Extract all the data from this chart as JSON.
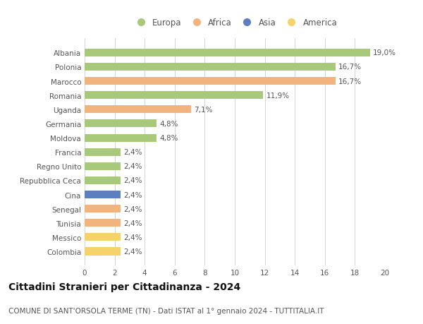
{
  "categories": [
    "Albania",
    "Polonia",
    "Marocco",
    "Romania",
    "Uganda",
    "Germania",
    "Moldova",
    "Francia",
    "Regno Unito",
    "Repubblica Ceca",
    "Cina",
    "Senegal",
    "Tunisia",
    "Messico",
    "Colombia"
  ],
  "values": [
    19.0,
    16.7,
    16.7,
    11.9,
    7.1,
    4.8,
    4.8,
    2.4,
    2.4,
    2.4,
    2.4,
    2.4,
    2.4,
    2.4,
    2.4
  ],
  "labels": [
    "19,0%",
    "16,7%",
    "16,7%",
    "11,9%",
    "7,1%",
    "4,8%",
    "4,8%",
    "2,4%",
    "2,4%",
    "2,4%",
    "2,4%",
    "2,4%",
    "2,4%",
    "2,4%",
    "2,4%"
  ],
  "continent": [
    "Europa",
    "Europa",
    "Africa",
    "Europa",
    "Africa",
    "Europa",
    "Europa",
    "Europa",
    "Europa",
    "Europa",
    "Asia",
    "Africa",
    "Africa",
    "America",
    "America"
  ],
  "colors": {
    "Europa": "#a8c97a",
    "Africa": "#f2b47e",
    "Asia": "#5b7fbf",
    "America": "#f5d26a"
  },
  "title1": "Cittadini Stranieri per Cittadinanza - 2024",
  "title2": "COMUNE DI SANT'ORSOLA TERME (TN) - Dati ISTAT al 1° gennaio 2024 - TUTTITALIA.IT",
  "xlim": [
    0,
    20
  ],
  "xticks": [
    0,
    2,
    4,
    6,
    8,
    10,
    12,
    14,
    16,
    18,
    20
  ],
  "background_color": "#ffffff",
  "grid_color": "#cccccc",
  "bar_height": 0.55,
  "text_fontsize": 7.5,
  "ytick_fontsize": 7.5,
  "xtick_fontsize": 7.5,
  "title1_fontsize": 10,
  "title2_fontsize": 7.5,
  "legend_entries": [
    "Europa",
    "Africa",
    "Asia",
    "America"
  ]
}
